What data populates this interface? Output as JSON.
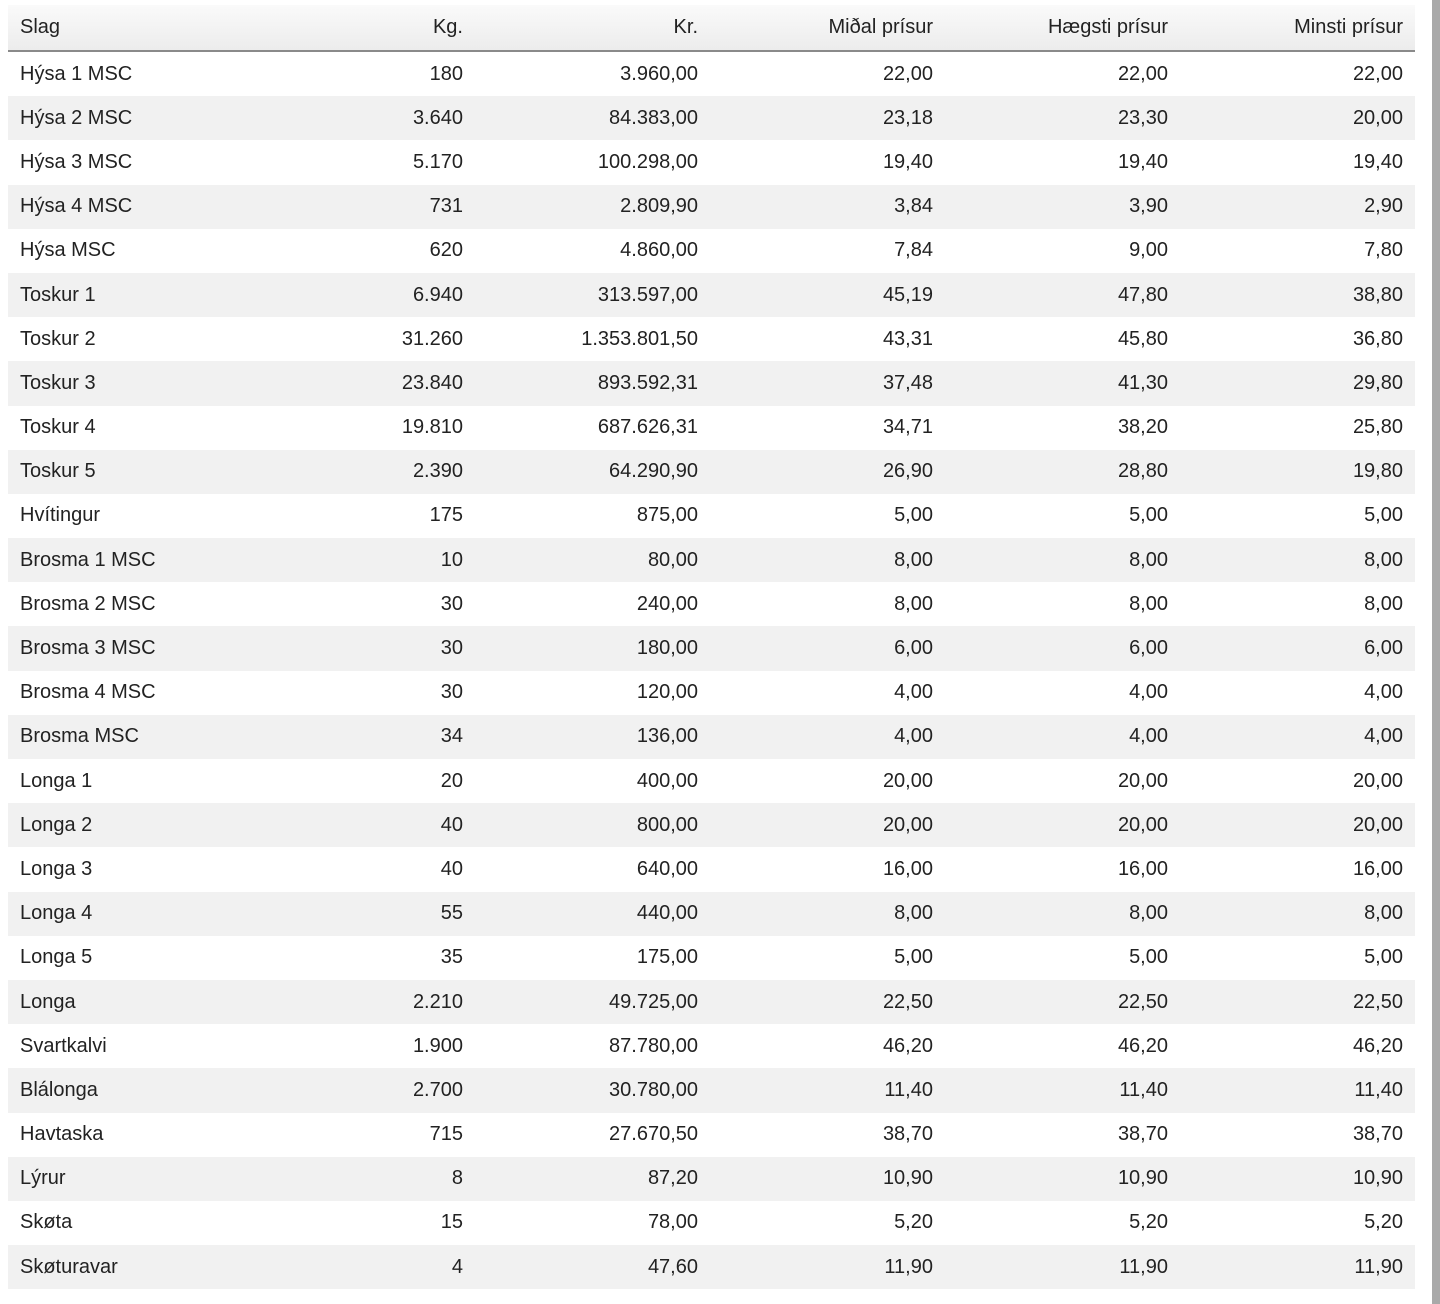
{
  "table": {
    "columns": [
      "Slag",
      "Kg.",
      "Kr.",
      "Miðal prísur",
      "Hægsti prísur",
      "Minsti prísur"
    ],
    "rows": [
      [
        "Hýsa 1 MSC",
        "180",
        "3.960,00",
        "22,00",
        "22,00",
        "22,00"
      ],
      [
        "Hýsa 2 MSC",
        "3.640",
        "84.383,00",
        "23,18",
        "23,30",
        "20,00"
      ],
      [
        "Hýsa 3 MSC",
        "5.170",
        "100.298,00",
        "19,40",
        "19,40",
        "19,40"
      ],
      [
        "Hýsa 4 MSC",
        "731",
        "2.809,90",
        "3,84",
        "3,90",
        "2,90"
      ],
      [
        "Hýsa MSC",
        "620",
        "4.860,00",
        "7,84",
        "9,00",
        "7,80"
      ],
      [
        "Toskur 1",
        "6.940",
        "313.597,00",
        "45,19",
        "47,80",
        "38,80"
      ],
      [
        "Toskur 2",
        "31.260",
        "1.353.801,50",
        "43,31",
        "45,80",
        "36,80"
      ],
      [
        "Toskur 3",
        "23.840",
        "893.592,31",
        "37,48",
        "41,30",
        "29,80"
      ],
      [
        "Toskur 4",
        "19.810",
        "687.626,31",
        "34,71",
        "38,20",
        "25,80"
      ],
      [
        "Toskur 5",
        "2.390",
        "64.290,90",
        "26,90",
        "28,80",
        "19,80"
      ],
      [
        "Hvítingur",
        "175",
        "875,00",
        "5,00",
        "5,00",
        "5,00"
      ],
      [
        "Brosma 1 MSC",
        "10",
        "80,00",
        "8,00",
        "8,00",
        "8,00"
      ],
      [
        "Brosma 2 MSC",
        "30",
        "240,00",
        "8,00",
        "8,00",
        "8,00"
      ],
      [
        "Brosma 3 MSC",
        "30",
        "180,00",
        "6,00",
        "6,00",
        "6,00"
      ],
      [
        "Brosma 4 MSC",
        "30",
        "120,00",
        "4,00",
        "4,00",
        "4,00"
      ],
      [
        "Brosma MSC",
        "34",
        "136,00",
        "4,00",
        "4,00",
        "4,00"
      ],
      [
        "Longa 1",
        "20",
        "400,00",
        "20,00",
        "20,00",
        "20,00"
      ],
      [
        "Longa 2",
        "40",
        "800,00",
        "20,00",
        "20,00",
        "20,00"
      ],
      [
        "Longa 3",
        "40",
        "640,00",
        "16,00",
        "16,00",
        "16,00"
      ],
      [
        "Longa 4",
        "55",
        "440,00",
        "8,00",
        "8,00",
        "8,00"
      ],
      [
        "Longa 5",
        "35",
        "175,00",
        "5,00",
        "5,00",
        "5,00"
      ],
      [
        "Longa",
        "2.210",
        "49.725,00",
        "22,50",
        "22,50",
        "22,50"
      ],
      [
        "Svartkalvi",
        "1.900",
        "87.780,00",
        "46,20",
        "46,20",
        "46,20"
      ],
      [
        "Blálonga",
        "2.700",
        "30.780,00",
        "11,40",
        "11,40",
        "11,40"
      ],
      [
        "Havtaska",
        "715",
        "27.670,50",
        "38,70",
        "38,70",
        "38,70"
      ],
      [
        "Lýrur",
        "8",
        "87,20",
        "10,90",
        "10,90",
        "10,90"
      ],
      [
        "Skøta",
        "15",
        "78,00",
        "5,20",
        "5,20",
        "5,20"
      ],
      [
        "Skøturavar",
        "4",
        "47,60",
        "11,90",
        "11,90",
        "11,90"
      ]
    ]
  }
}
